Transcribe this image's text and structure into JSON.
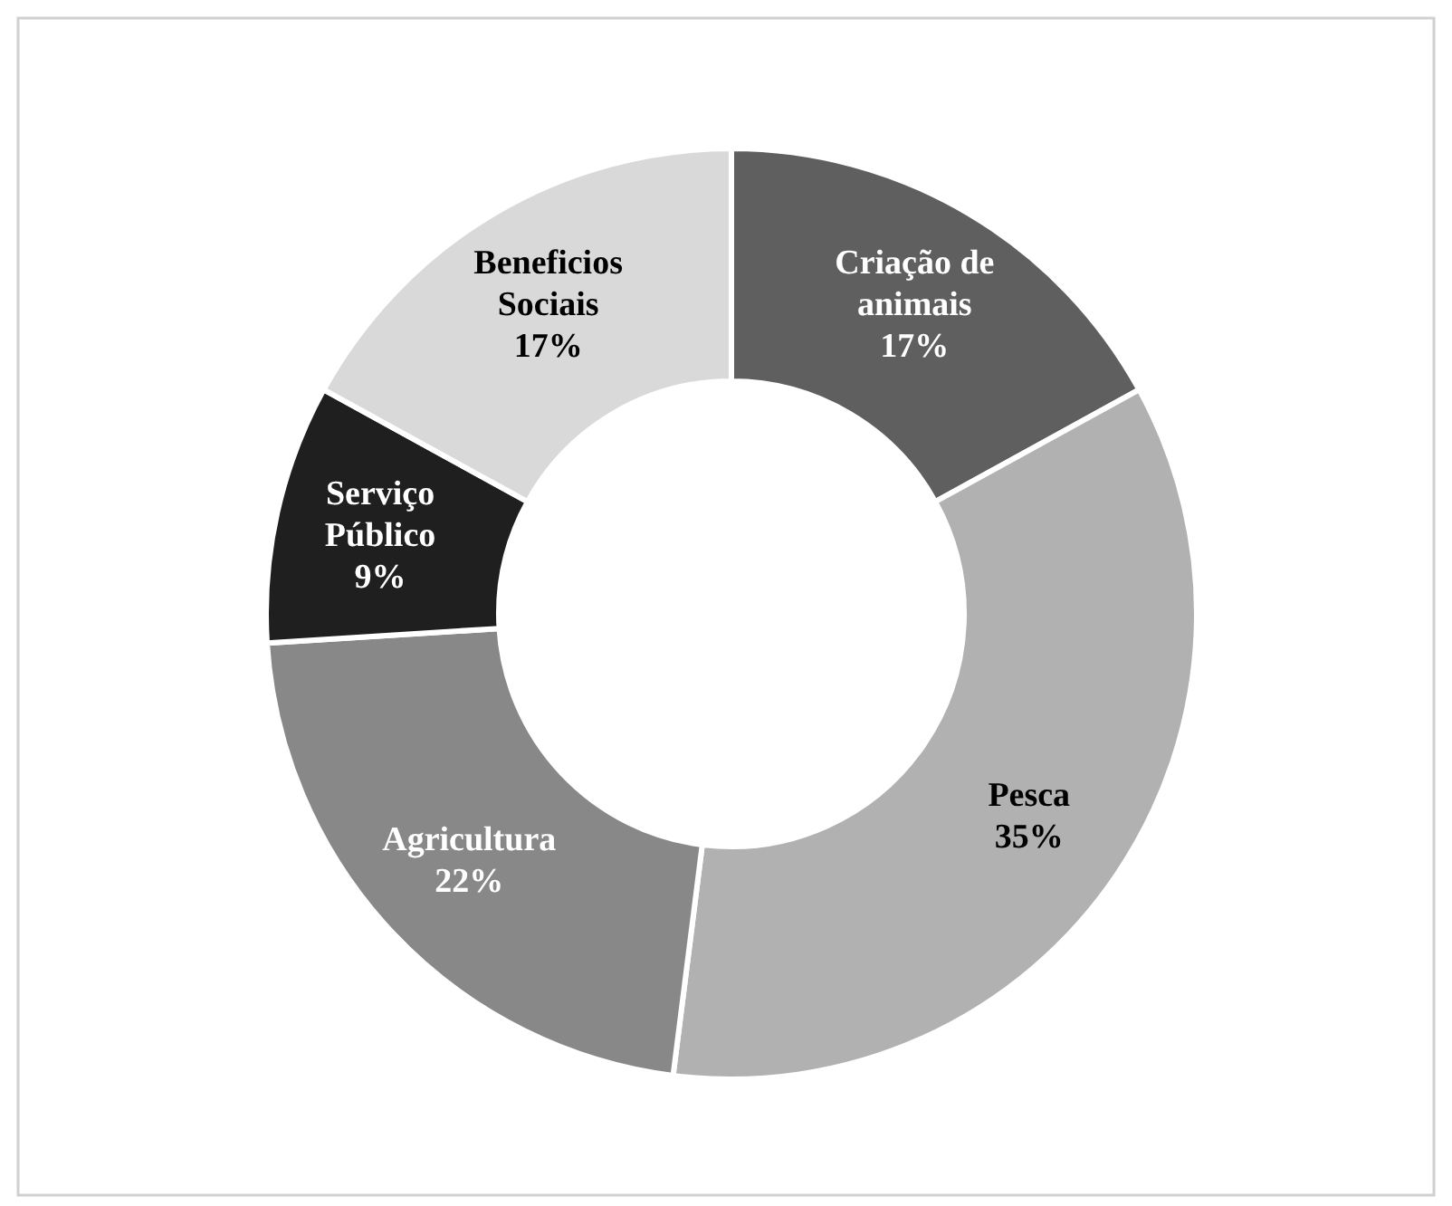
{
  "chart_data": {
    "type": "donut",
    "categories": [
      "Criação de animais",
      "Pesca",
      "Agricultura",
      "Serviço Público",
      "Beneficios Sociais"
    ],
    "values": [
      17,
      35,
      22,
      9,
      17
    ],
    "value_labels": [
      "17%",
      "35%",
      "22%",
      "9%",
      "17%"
    ],
    "colors": [
      "#5f5f5f",
      "#b1b1b1",
      "#888888",
      "#1f1f1f",
      "#d9d9d9"
    ]
  }
}
